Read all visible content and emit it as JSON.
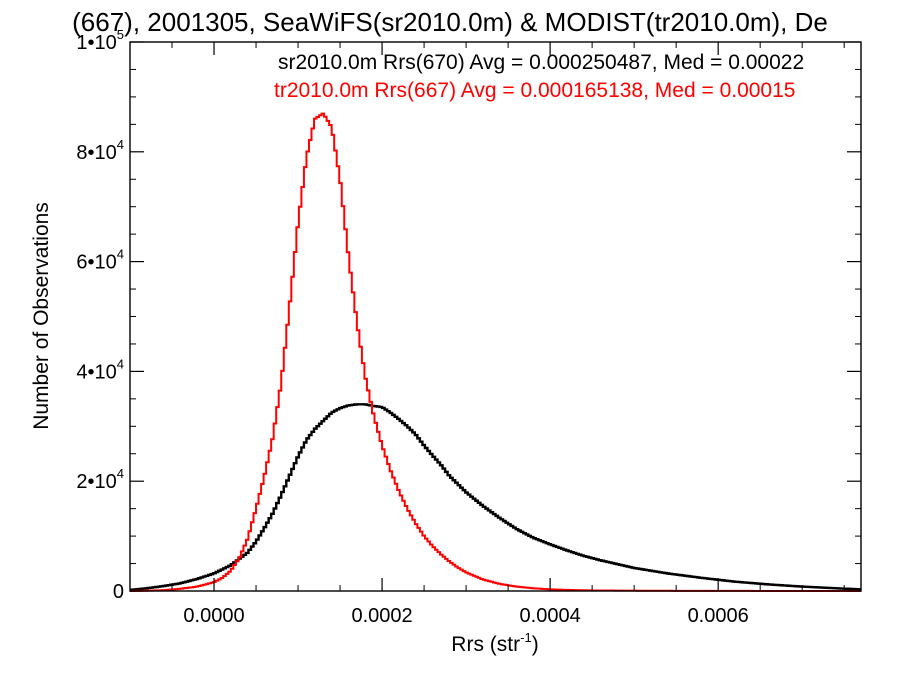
{
  "chart_data": {
    "type": "line",
    "step": true,
    "title": "(667), 2001305, SeaWiFS(sr2010.0m) & MODIST(tr2010.0m), De",
    "xlabel": "Rrs (str",
    "xlabel_sup": "-1",
    "xlabel_end": ")",
    "ylabel": "Number of Observations",
    "xlim": [
      -0.0001,
      0.00077
    ],
    "ylim": [
      0,
      100000
    ],
    "x_ticks": [
      {
        "value": 0.0,
        "label": "0.0000"
      },
      {
        "value": 0.0002,
        "label": "0.0002"
      },
      {
        "value": 0.0004,
        "label": "0.0004"
      },
      {
        "value": 0.0006,
        "label": "0.0006"
      }
    ],
    "y_ticks": [
      {
        "value": 0,
        "base": "0",
        "exp": ""
      },
      {
        "value": 20000,
        "base": "2•10",
        "exp": "4"
      },
      {
        "value": 40000,
        "base": "4•10",
        "exp": "4"
      },
      {
        "value": 60000,
        "base": "6•10",
        "exp": "4"
      },
      {
        "value": 80000,
        "base": "8•10",
        "exp": "4"
      },
      {
        "value": 100000,
        "base": "1•10",
        "exp": "5"
      }
    ],
    "grid": false,
    "legend_position": "top-right",
    "series": [
      {
        "name": "sr2010.0m Rrs(670) Avg = 0.000250487, Med = 0.00022",
        "color": "#000000",
        "x": [
          -0.0001,
          -8e-05,
          -6e-05,
          -4e-05,
          -2e-05,
          0.0,
          2e-05,
          4e-05,
          5e-05,
          6e-05,
          7e-05,
          8e-05,
          9e-05,
          0.0001,
          0.00011,
          0.00012,
          0.00013,
          0.00014,
          0.00015,
          0.00016,
          0.00017,
          0.00018,
          0.00019,
          0.0002,
          0.00021,
          0.00022,
          0.00023,
          0.00024,
          0.00025,
          0.00026,
          0.00027,
          0.00028,
          0.0003,
          0.00032,
          0.00034,
          0.00036,
          0.00038,
          0.0004,
          0.00042,
          0.00044,
          0.00046,
          0.00048,
          0.0005,
          0.00054,
          0.00058,
          0.00062,
          0.00066,
          0.0007,
          0.00074,
          0.00077
        ],
        "y": [
          200,
          500,
          900,
          1400,
          2200,
          3200,
          4700,
          7000,
          9000,
          11500,
          14200,
          17500,
          21000,
          24500,
          27500,
          29500,
          31000,
          32500,
          33300,
          33800,
          34000,
          34000,
          33700,
          33500,
          32500,
          31300,
          30000,
          28500,
          26500,
          24700,
          23000,
          21000,
          18000,
          15500,
          13300,
          11300,
          9700,
          8500,
          7400,
          6400,
          5600,
          4900,
          4200,
          3200,
          2400,
          1700,
          1200,
          800,
          500,
          300
        ]
      },
      {
        "name": "tr2010.0m Rrs(667) Avg = 0.000165138, Med = 0.00015",
        "color": "#ff0000",
        "x": [
          -0.0001,
          -8e-05,
          -6e-05,
          -4e-05,
          -2e-05,
          0.0,
          1e-05,
          2e-05,
          3e-05,
          4e-05,
          5e-05,
          6e-05,
          7e-05,
          8e-05,
          9e-05,
          0.0001,
          0.00011,
          0.00012,
          0.00013,
          0.00014,
          0.00015,
          0.00016,
          0.00017,
          0.00018,
          0.00019,
          0.0002,
          0.00021,
          0.00022,
          0.00023,
          0.00024,
          0.00025,
          0.00026,
          0.00027,
          0.00028,
          0.00029,
          0.0003,
          0.00032,
          0.00034,
          0.00036,
          0.00038,
          0.0004,
          0.00042,
          0.00045,
          0.0005,
          0.00055,
          0.0006,
          0.00065,
          0.0007,
          0.00077
        ],
        "y": [
          0,
          50,
          150,
          400,
          800,
          1600,
          2400,
          3700,
          6000,
          9500,
          15000,
          21000,
          28000,
          38000,
          52000,
          67000,
          79000,
          86000,
          87000,
          84500,
          75000,
          61000,
          49000,
          39000,
          32000,
          26500,
          22000,
          18200,
          15000,
          12300,
          10000,
          8200,
          6700,
          5400,
          4300,
          3400,
          2100,
          1300,
          800,
          500,
          300,
          200,
          100,
          60,
          30,
          20,
          10,
          5,
          0
        ]
      }
    ]
  }
}
